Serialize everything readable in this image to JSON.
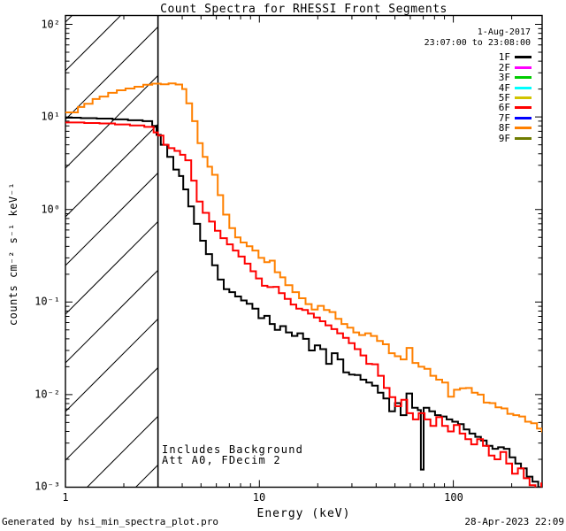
{
  "title": "Count Spectra for RHESSI Front Segments",
  "annotations": {
    "date": "1-Aug-2017",
    "time_range": "23:07:00 to 23:08:00",
    "background_note": "Includes Background",
    "attenuator_note": "Att A0, FDecim 2"
  },
  "footer": {
    "left": "Generated by hsi_min_spectra_plot.pro",
    "right": "28-Apr-2023 22:09"
  },
  "legend": {
    "items": [
      {
        "label": "1F",
        "color": "#000000"
      },
      {
        "label": "2F",
        "color": "#FF00FF"
      },
      {
        "label": "3F",
        "color": "#00CC00"
      },
      {
        "label": "4F",
        "color": "#00FFFF"
      },
      {
        "label": "5F",
        "color": "#D1C400"
      },
      {
        "label": "6F",
        "color": "#FF0000"
      },
      {
        "label": "7F",
        "color": "#0000FF"
      },
      {
        "label": "8F",
        "color": "#FF8000"
      },
      {
        "label": "9F",
        "color": "#6F7C00"
      }
    ]
  },
  "chart_data": {
    "type": "line",
    "subtype": "stepped-histogram-spectra",
    "title": "Count Spectra for RHESSI Front Segments",
    "xlabel": "Energy (keV)",
    "ylabel": "counts cm⁻² s⁻¹ keV⁻¹",
    "x_scale": "log",
    "y_scale": "log",
    "xlim": [
      1,
      287
    ],
    "ylim": [
      0.001,
      124.7
    ],
    "x_ticks": [
      {
        "value": 1,
        "label": "1"
      },
      {
        "value": 10,
        "label": "10"
      },
      {
        "value": 100,
        "label": "100"
      }
    ],
    "y_ticks": [
      {
        "value": 100,
        "label": "10²"
      },
      {
        "value": 10,
        "label": "10¹"
      },
      {
        "value": 1,
        "label": "10⁰"
      },
      {
        "value": 0.1,
        "label": "10⁻¹"
      },
      {
        "value": 0.01,
        "label": "10⁻²"
      },
      {
        "value": 0.001,
        "label": "10⁻³"
      }
    ],
    "grid": false,
    "legend_position": "top-right",
    "hatch_region": {
      "xmin": 1,
      "xmax": 3
    },
    "series": [
      {
        "name": "1F",
        "color": "#000000",
        "points": [
          [
            1.0,
            9.8
          ],
          [
            1.2,
            9.7
          ],
          [
            1.45,
            9.6
          ],
          [
            1.75,
            9.4
          ],
          [
            2.1,
            9.2
          ],
          [
            2.5,
            9.0
          ],
          [
            2.8,
            8.0
          ],
          [
            2.95,
            6.4
          ],
          [
            3.1,
            5.0
          ],
          [
            3.35,
            3.7
          ],
          [
            3.6,
            2.7
          ],
          [
            3.85,
            2.3
          ],
          [
            4.05,
            1.65
          ],
          [
            4.3,
            1.08
          ],
          [
            4.6,
            0.7
          ],
          [
            4.95,
            0.46
          ],
          [
            5.3,
            0.33
          ],
          [
            5.7,
            0.25
          ],
          [
            6.1,
            0.175
          ],
          [
            6.55,
            0.138
          ],
          [
            7.0,
            0.128
          ],
          [
            7.5,
            0.115
          ],
          [
            8.05,
            0.104
          ],
          [
            8.6,
            0.096
          ],
          [
            9.2,
            0.085
          ],
          [
            9.9,
            0.067
          ],
          [
            10.6,
            0.071
          ],
          [
            11.3,
            0.058
          ],
          [
            12.0,
            0.05
          ],
          [
            12.8,
            0.055
          ],
          [
            13.7,
            0.047
          ],
          [
            14.7,
            0.043
          ],
          [
            15.7,
            0.046
          ],
          [
            16.8,
            0.04
          ],
          [
            18.0,
            0.03
          ],
          [
            19.3,
            0.034
          ],
          [
            20.6,
            0.031
          ],
          [
            22.1,
            0.0215
          ],
          [
            23.6,
            0.028
          ],
          [
            25.3,
            0.024
          ],
          [
            27.1,
            0.0174
          ],
          [
            29.0,
            0.0165
          ],
          [
            31.0,
            0.0163
          ],
          [
            33.2,
            0.0145
          ],
          [
            35.6,
            0.0135
          ],
          [
            38.1,
            0.0125
          ],
          [
            40.8,
            0.0105
          ],
          [
            43.6,
            0.0091
          ],
          [
            46.7,
            0.0066
          ],
          [
            50.0,
            0.0081
          ],
          [
            53.5,
            0.006
          ],
          [
            57.3,
            0.0103
          ],
          [
            61.3,
            0.0072
          ],
          [
            65.6,
            0.0068
          ],
          [
            68.0,
            0.00155
          ],
          [
            70.3,
            0.0072
          ],
          [
            75.2,
            0.0066
          ],
          [
            80.5,
            0.006
          ],
          [
            86.2,
            0.0058
          ],
          [
            92.3,
            0.0054
          ],
          [
            98.8,
            0.0051
          ],
          [
            105.7,
            0.0048
          ],
          [
            113.2,
            0.0042
          ],
          [
            121.1,
            0.0038
          ],
          [
            129.7,
            0.0035
          ],
          [
            138.8,
            0.0032
          ],
          [
            148.6,
            0.0028
          ],
          [
            159.0,
            0.0026
          ],
          [
            170.2,
            0.0027
          ],
          [
            182.2,
            0.0026
          ],
          [
            195.0,
            0.0021
          ],
          [
            208.7,
            0.0018
          ],
          [
            223.4,
            0.0016
          ],
          [
            239.1,
            0.0013
          ],
          [
            255.9,
            0.00115
          ],
          [
            273.9,
            0.001
          ],
          [
            286.0,
            0.00095
          ]
        ]
      },
      {
        "name": "6F",
        "color": "#FF0000",
        "points": [
          [
            1.0,
            8.7
          ],
          [
            1.25,
            8.6
          ],
          [
            1.5,
            8.5
          ],
          [
            1.8,
            8.3
          ],
          [
            2.15,
            8.1
          ],
          [
            2.55,
            7.8
          ],
          [
            2.85,
            6.8
          ],
          [
            3.0,
            6.3
          ],
          [
            3.2,
            5.0
          ],
          [
            3.4,
            4.6
          ],
          [
            3.65,
            4.3
          ],
          [
            3.9,
            3.9
          ],
          [
            4.15,
            3.4
          ],
          [
            4.45,
            2.05
          ],
          [
            4.75,
            1.22
          ],
          [
            5.1,
            0.92
          ],
          [
            5.5,
            0.74
          ],
          [
            5.9,
            0.59
          ],
          [
            6.3,
            0.49
          ],
          [
            6.8,
            0.42
          ],
          [
            7.3,
            0.36
          ],
          [
            7.8,
            0.31
          ],
          [
            8.4,
            0.26
          ],
          [
            9.0,
            0.215
          ],
          [
            9.6,
            0.18
          ],
          [
            10.3,
            0.15
          ],
          [
            11.0,
            0.145
          ],
          [
            11.8,
            0.146
          ],
          [
            12.6,
            0.125
          ],
          [
            13.5,
            0.108
          ],
          [
            14.5,
            0.094
          ],
          [
            15.5,
            0.085
          ],
          [
            16.6,
            0.082
          ],
          [
            17.8,
            0.075
          ],
          [
            19.1,
            0.068
          ],
          [
            20.5,
            0.062
          ],
          [
            21.9,
            0.056
          ],
          [
            23.5,
            0.051
          ],
          [
            25.2,
            0.046
          ],
          [
            27.0,
            0.041
          ],
          [
            28.9,
            0.036
          ],
          [
            31.0,
            0.031
          ],
          [
            33.2,
            0.0265
          ],
          [
            35.6,
            0.0215
          ],
          [
            38.1,
            0.0213
          ],
          [
            40.9,
            0.016
          ],
          [
            43.8,
            0.0118
          ],
          [
            46.9,
            0.0094
          ],
          [
            50.3,
            0.0075
          ],
          [
            53.9,
            0.0088
          ],
          [
            57.8,
            0.0063
          ],
          [
            61.9,
            0.0054
          ],
          [
            66.3,
            0.0063
          ],
          [
            71.1,
            0.0054
          ],
          [
            76.2,
            0.0046
          ],
          [
            81.7,
            0.0057
          ],
          [
            87.5,
            0.0046
          ],
          [
            93.8,
            0.004
          ],
          [
            100.5,
            0.0047
          ],
          [
            107.7,
            0.0038
          ],
          [
            115.4,
            0.0033
          ],
          [
            123.7,
            0.0029
          ],
          [
            132.6,
            0.0033
          ],
          [
            142.1,
            0.0028
          ],
          [
            152.3,
            0.0022
          ],
          [
            163.2,
            0.002
          ],
          [
            174.9,
            0.0024
          ],
          [
            187.4,
            0.0018
          ],
          [
            200.8,
            0.0014
          ],
          [
            215.2,
            0.0016
          ],
          [
            230.7,
            0.00125
          ],
          [
            247.2,
            0.00105
          ],
          [
            264.9,
            0.0009
          ],
          [
            283.9,
            0.0011
          ],
          [
            286.0,
            0.0011
          ]
        ]
      },
      {
        "name": "8F",
        "color": "#FF8000",
        "points": [
          [
            1.0,
            11.2
          ],
          [
            1.16,
            12.8
          ],
          [
            1.25,
            13.9
          ],
          [
            1.38,
            15.6
          ],
          [
            1.5,
            16.6
          ],
          [
            1.66,
            18.2
          ],
          [
            1.84,
            19.4
          ],
          [
            2.04,
            20.3
          ],
          [
            2.27,
            21.2
          ],
          [
            2.52,
            22.3
          ],
          [
            2.8,
            22.9
          ],
          [
            3.1,
            22.5
          ],
          [
            3.4,
            23.0
          ],
          [
            3.7,
            22.4
          ],
          [
            4.0,
            20.0
          ],
          [
            4.2,
            14.0
          ],
          [
            4.5,
            9.0
          ],
          [
            4.8,
            5.2
          ],
          [
            5.1,
            3.7
          ],
          [
            5.4,
            2.9
          ],
          [
            5.7,
            2.37
          ],
          [
            6.1,
            1.43
          ],
          [
            6.5,
            0.88
          ],
          [
            7.0,
            0.63
          ],
          [
            7.5,
            0.5
          ],
          [
            8.0,
            0.44
          ],
          [
            8.6,
            0.4
          ],
          [
            9.2,
            0.36
          ],
          [
            9.9,
            0.3
          ],
          [
            10.6,
            0.27
          ],
          [
            11.3,
            0.28
          ],
          [
            12.0,
            0.21
          ],
          [
            12.8,
            0.185
          ],
          [
            13.6,
            0.152
          ],
          [
            14.8,
            0.128
          ],
          [
            16.0,
            0.11
          ],
          [
            17.3,
            0.095
          ],
          [
            18.6,
            0.083
          ],
          [
            20.0,
            0.091
          ],
          [
            21.5,
            0.082
          ],
          [
            23.0,
            0.078
          ],
          [
            24.7,
            0.066
          ],
          [
            26.5,
            0.058
          ],
          [
            28.4,
            0.053
          ],
          [
            30.5,
            0.047
          ],
          [
            32.7,
            0.044
          ],
          [
            35.1,
            0.046
          ],
          [
            37.6,
            0.043
          ],
          [
            40.4,
            0.038
          ],
          [
            43.3,
            0.035
          ],
          [
            46.5,
            0.028
          ],
          [
            49.9,
            0.026
          ],
          [
            53.5,
            0.024
          ],
          [
            57.4,
            0.032
          ],
          [
            61.6,
            0.022
          ],
          [
            66.1,
            0.02
          ],
          [
            70.9,
            0.019
          ],
          [
            76.1,
            0.016
          ],
          [
            81.6,
            0.0145
          ],
          [
            87.6,
            0.0135
          ],
          [
            94.0,
            0.0095
          ],
          [
            100.8,
            0.0113
          ],
          [
            108.2,
            0.0117
          ],
          [
            116.1,
            0.0118
          ],
          [
            124.5,
            0.0105
          ],
          [
            133.6,
            0.01
          ],
          [
            143.4,
            0.0082
          ],
          [
            153.8,
            0.0081
          ],
          [
            165.0,
            0.0073
          ],
          [
            177.1,
            0.0071
          ],
          [
            190.0,
            0.0062
          ],
          [
            203.8,
            0.006
          ],
          [
            218.7,
            0.0058
          ],
          [
            234.6,
            0.0051
          ],
          [
            251.7,
            0.0049
          ],
          [
            270.1,
            0.0043
          ],
          [
            286.0,
            0.004
          ]
        ]
      }
    ]
  }
}
